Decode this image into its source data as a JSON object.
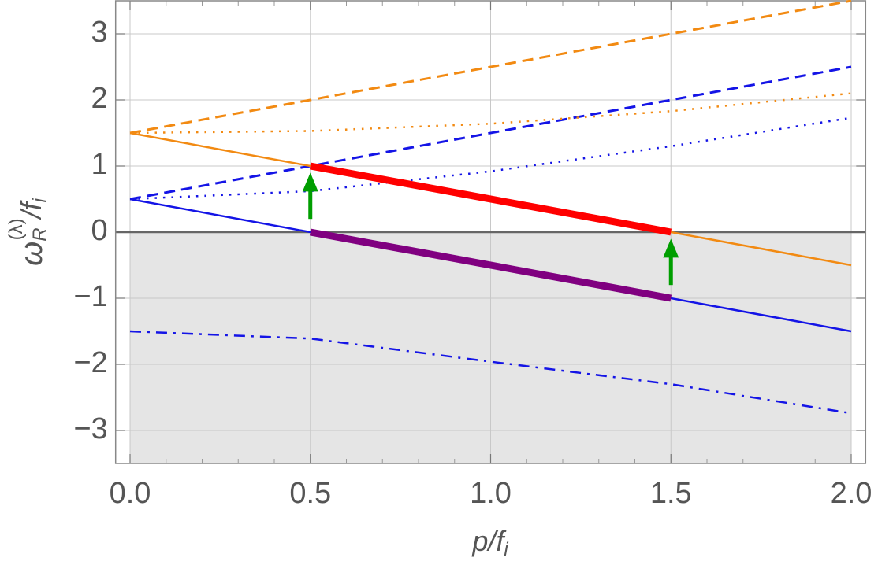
{
  "chart_data": {
    "type": "line",
    "xlabel": [
      "p/f",
      "i"
    ],
    "ylabel": [
      "ω",
      "R",
      "(λ)",
      "/f",
      "i"
    ],
    "xlim": [
      -0.04,
      2.04
    ],
    "ylim": [
      -3.5,
      3.5
    ],
    "xticks": [
      {
        "value": 0,
        "label": "0.0"
      },
      0.5,
      {
        "value": 1,
        "label": "1.0"
      },
      1.5,
      {
        "value": 2,
        "label": "2.0"
      }
    ],
    "xticks_minor": [
      0.1,
      0.2,
      0.3,
      0.4,
      0.6,
      0.7,
      0.8,
      0.9,
      1.1,
      1.2,
      1.3,
      1.4,
      1.6,
      1.7,
      1.8,
      1.9
    ],
    "yticks": [
      {
        "value": -3,
        "label": "−3"
      },
      {
        "value": -2,
        "label": "−2"
      },
      {
        "value": -1,
        "label": "−1"
      },
      0,
      1,
      2,
      3
    ],
    "grid": true,
    "zero_line": true,
    "shade": {
      "below": 0,
      "x": [
        0,
        2
      ],
      "color": "#e5e5e5"
    },
    "series": [
      {
        "color": "#f28a12",
        "style": "dashed",
        "width": 3,
        "x": [
          0,
          2
        ],
        "values": [
          1.5,
          3.5
        ]
      },
      {
        "color": "#1414e6",
        "style": "dashed",
        "width": 3,
        "x": [
          0,
          2
        ],
        "values": [
          0.5,
          2.5
        ]
      },
      {
        "color": "#f28a12",
        "style": "dotted",
        "width": 2.5,
        "x": [
          0,
          0.5,
          1,
          1.5,
          2
        ],
        "values": [
          1.5,
          1.53,
          1.64,
          1.83,
          2.1
        ]
      },
      {
        "color": "#1414e6",
        "style": "dotted",
        "width": 2.5,
        "x": [
          0,
          0.5,
          1,
          1.5,
          2
        ],
        "values": [
          0.5,
          0.62,
          0.92,
          1.3,
          1.73
        ]
      },
      {
        "color": "#f28a12",
        "style": "solid",
        "width": 2.5,
        "x": [
          0,
          2
        ],
        "values": [
          1.5,
          -0.5
        ]
      },
      {
        "color": "#1414e6",
        "style": "solid",
        "width": 2.5,
        "x": [
          0,
          2
        ],
        "values": [
          0.5,
          -1.5
        ]
      },
      {
        "color": "#1414e6",
        "style": "dashdot",
        "width": 2.5,
        "x": [
          0,
          0.5,
          1,
          1.5,
          2
        ],
        "values": [
          -1.5,
          -1.61,
          -1.96,
          -2.3,
          -2.74
        ]
      },
      {
        "color": "#ff0000",
        "style": "solid",
        "width": 9,
        "x": [
          0.5,
          1.5
        ],
        "values": [
          1,
          0
        ]
      },
      {
        "color": "#800080",
        "style": "solid",
        "width": 9,
        "x": [
          0.5,
          1.5
        ],
        "values": [
          0,
          -1
        ]
      }
    ],
    "arrows": [
      {
        "color": "#009e00",
        "x": 0.5,
        "y": [
          0.2,
          0.9
        ]
      },
      {
        "color": "#009e00",
        "x": 1.5,
        "y": [
          -0.8,
          -0.1
        ]
      }
    ]
  }
}
